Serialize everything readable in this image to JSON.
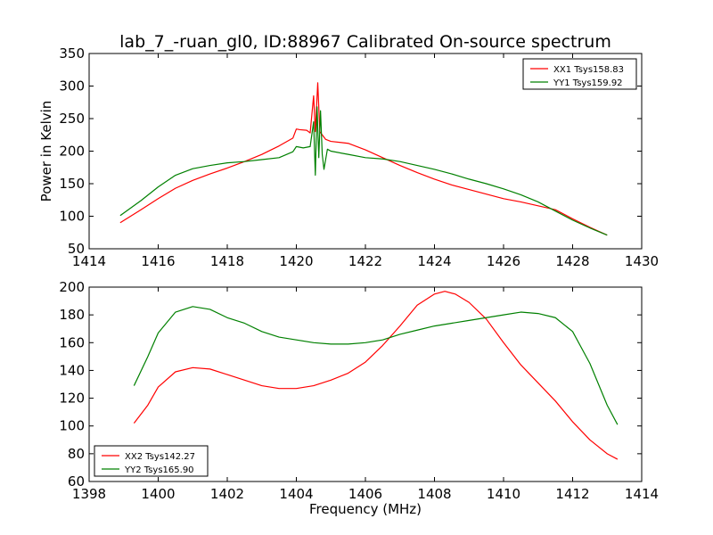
{
  "title": "lab_7_-ruan_gl0, ID:88967 Calibrated On-source spectrum",
  "chart_data": [
    {
      "type": "line",
      "xlabel": "",
      "ylabel": "Power in Kelvin",
      "xlim": [
        1414,
        1430
      ],
      "ylim": [
        50,
        350
      ],
      "xticks": [
        "1414",
        "1416",
        "1418",
        "1420",
        "1422",
        "1424",
        "1426",
        "1428",
        "1430"
      ],
      "yticks": [
        "50",
        "100",
        "150",
        "200",
        "250",
        "300",
        "350"
      ],
      "legend_position": "top-right",
      "series": [
        {
          "name": "XX1 Tsys158.83",
          "color": "#ff0000",
          "points": [
            [
              1414.9,
              90
            ],
            [
              1415.5,
              110
            ],
            [
              1416.0,
              127
            ],
            [
              1416.5,
              143
            ],
            [
              1417.0,
              155
            ],
            [
              1417.5,
              165
            ],
            [
              1418.0,
              174
            ],
            [
              1418.5,
              184
            ],
            [
              1419.0,
              195
            ],
            [
              1419.5,
              208
            ],
            [
              1419.9,
              220
            ],
            [
              1420.0,
              234
            ],
            [
              1420.1,
              233
            ],
            [
              1420.3,
              232
            ],
            [
              1420.4,
              228
            ],
            [
              1420.5,
              285
            ],
            [
              1420.55,
              230
            ],
            [
              1420.62,
              305
            ],
            [
              1420.68,
              230
            ],
            [
              1420.75,
              225
            ],
            [
              1420.85,
              218
            ],
            [
              1421.0,
              215
            ],
            [
              1421.5,
              212
            ],
            [
              1422.0,
              202
            ],
            [
              1422.5,
              190
            ],
            [
              1423.0,
              178
            ],
            [
              1423.5,
              167
            ],
            [
              1424.0,
              157
            ],
            [
              1424.5,
              148
            ],
            [
              1425.0,
              141
            ],
            [
              1425.5,
              134
            ],
            [
              1426.0,
              127
            ],
            [
              1426.5,
              122
            ],
            [
              1427.0,
              116
            ],
            [
              1427.5,
              110
            ],
            [
              1428.0,
              96
            ],
            [
              1428.5,
              83
            ],
            [
              1429.0,
              71
            ]
          ]
        },
        {
          "name": "YY1 Tsys159.92",
          "color": "#008000",
          "points": [
            [
              1414.9,
              101
            ],
            [
              1415.5,
              124
            ],
            [
              1416.0,
              145
            ],
            [
              1416.5,
              163
            ],
            [
              1417.0,
              173
            ],
            [
              1417.5,
              178
            ],
            [
              1418.0,
              182
            ],
            [
              1418.5,
              184
            ],
            [
              1419.0,
              187
            ],
            [
              1419.5,
              190
            ],
            [
              1419.9,
              199
            ],
            [
              1420.0,
              207
            ],
            [
              1420.2,
              205
            ],
            [
              1420.4,
              207
            ],
            [
              1420.5,
              245
            ],
            [
              1420.55,
              163
            ],
            [
              1420.6,
              268
            ],
            [
              1420.65,
              190
            ],
            [
              1420.7,
              262
            ],
            [
              1420.75,
              195
            ],
            [
              1420.8,
              172
            ],
            [
              1420.9,
              203
            ],
            [
              1421.0,
              200
            ],
            [
              1421.5,
              195
            ],
            [
              1422.0,
              190
            ],
            [
              1422.5,
              188
            ],
            [
              1423.0,
              184
            ],
            [
              1423.5,
              178
            ],
            [
              1424.0,
              172
            ],
            [
              1424.5,
              165
            ],
            [
              1425.0,
              157
            ],
            [
              1425.5,
              150
            ],
            [
              1426.0,
              142
            ],
            [
              1426.5,
              133
            ],
            [
              1427.0,
              122
            ],
            [
              1427.5,
              108
            ],
            [
              1428.0,
              94
            ],
            [
              1428.5,
              82
            ],
            [
              1429.0,
              71
            ]
          ]
        }
      ]
    },
    {
      "type": "line",
      "xlabel": "Frequency (MHz)",
      "ylabel": "",
      "xlim": [
        1398,
        1414
      ],
      "ylim": [
        60,
        200
      ],
      "xticks": [
        "1398",
        "1400",
        "1402",
        "1404",
        "1406",
        "1408",
        "1410",
        "1412",
        "1414"
      ],
      "yticks": [
        "60",
        "80",
        "100",
        "120",
        "140",
        "160",
        "180",
        "200"
      ],
      "legend_position": "bottom-left",
      "series": [
        {
          "name": "XX2 Tsys142.27",
          "color": "#ff0000",
          "points": [
            [
              1399.3,
              102
            ],
            [
              1399.7,
              115
            ],
            [
              1400.0,
              128
            ],
            [
              1400.5,
              139
            ],
            [
              1401.0,
              142
            ],
            [
              1401.5,
              141
            ],
            [
              1402.0,
              137
            ],
            [
              1402.5,
              133
            ],
            [
              1403.0,
              129
            ],
            [
              1403.5,
              127
            ],
            [
              1404.0,
              127
            ],
            [
              1404.5,
              129
            ],
            [
              1405.0,
              133
            ],
            [
              1405.5,
              138
            ],
            [
              1406.0,
              146
            ],
            [
              1406.5,
              158
            ],
            [
              1407.0,
              172
            ],
            [
              1407.5,
              187
            ],
            [
              1408.0,
              195
            ],
            [
              1408.3,
              197
            ],
            [
              1408.6,
              195
            ],
            [
              1409.0,
              189
            ],
            [
              1409.5,
              177
            ],
            [
              1410.0,
              160
            ],
            [
              1410.5,
              144
            ],
            [
              1411.0,
              131
            ],
            [
              1411.5,
              118
            ],
            [
              1412.0,
              103
            ],
            [
              1412.5,
              90
            ],
            [
              1413.0,
              80
            ],
            [
              1413.3,
              76
            ]
          ]
        },
        {
          "name": "YY2 Tsys165.90",
          "color": "#008000",
          "points": [
            [
              1399.3,
              129
            ],
            [
              1399.7,
              150
            ],
            [
              1400.0,
              167
            ],
            [
              1400.5,
              182
            ],
            [
              1401.0,
              186
            ],
            [
              1401.5,
              184
            ],
            [
              1402.0,
              178
            ],
            [
              1402.5,
              174
            ],
            [
              1403.0,
              168
            ],
            [
              1403.5,
              164
            ],
            [
              1404.0,
              162
            ],
            [
              1404.5,
              160
            ],
            [
              1405.0,
              159
            ],
            [
              1405.5,
              159
            ],
            [
              1406.0,
              160
            ],
            [
              1406.5,
              162
            ],
            [
              1407.0,
              166
            ],
            [
              1407.5,
              169
            ],
            [
              1408.0,
              172
            ],
            [
              1408.5,
              174
            ],
            [
              1409.0,
              176
            ],
            [
              1409.5,
              178
            ],
            [
              1410.0,
              180
            ],
            [
              1410.5,
              182
            ],
            [
              1411.0,
              181
            ],
            [
              1411.5,
              178
            ],
            [
              1412.0,
              168
            ],
            [
              1412.5,
              145
            ],
            [
              1413.0,
              115
            ],
            [
              1413.3,
              101
            ]
          ]
        }
      ]
    }
  ]
}
